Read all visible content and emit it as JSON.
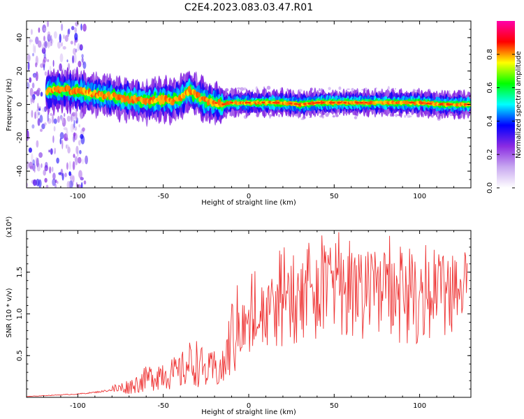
{
  "title": "C2E4.2023.083.03.47.R01",
  "chart_data": [
    {
      "type": "heatmap",
      "xlabel": "Height of straight line (km)",
      "ylabel": "Frequency (Hz)",
      "xlim": [
        -130,
        130
      ],
      "ylim": [
        -50,
        50
      ],
      "xticks": [
        -100,
        -50,
        0,
        50,
        100
      ],
      "yticks": [
        -40,
        -20,
        0,
        20,
        40
      ],
      "colorbar": {
        "label": "Normalized spectral amplitude",
        "range": [
          0,
          1
        ],
        "ticks": [
          "0.0",
          "0.2",
          "0.4",
          "0.6",
          "0.8"
        ],
        "colors": [
          "#ffffff",
          "#c8a8f0",
          "#8a2be2",
          "#0000ff",
          "#00ffff",
          "#00ff00",
          "#ffff00",
          "#ff0000",
          "#ff00aa"
        ]
      },
      "ridge": {
        "x": [
          -118,
          -110,
          -100,
          -90,
          -80,
          -70,
          -60,
          -50,
          -45,
          -40,
          -35,
          -30,
          -25,
          -20,
          -15,
          -10,
          0,
          10,
          20,
          30,
          40,
          50,
          60,
          70,
          80,
          90,
          100,
          110,
          120,
          128
        ],
        "y": [
          8,
          9,
          8,
          6,
          5,
          3,
          2,
          3,
          2,
          4,
          8,
          5,
          2,
          1,
          0,
          1,
          1,
          1,
          1,
          0,
          1,
          1,
          1,
          1,
          1,
          1,
          1,
          0,
          0,
          0
        ]
      }
    },
    {
      "type": "line",
      "xlabel": "Height of straight line (km)",
      "ylabel": "SNR (10 * v/v)",
      "yscale_label": "(x10⁴)",
      "xlim": [
        -130,
        130
      ],
      "ylim": [
        0,
        2.0
      ],
      "xticks": [
        -100,
        -50,
        0,
        50,
        100
      ],
      "yticks": [
        "0.5",
        "1.0",
        "1.5"
      ],
      "line_color": "#ee3333",
      "series": [
        {
          "x": [
            -130,
            -120,
            -110,
            -100,
            -90,
            -80,
            -70,
            -65,
            -60,
            -55,
            -50,
            -45,
            -40,
            -35,
            -30,
            -25,
            -20,
            -15,
            -10,
            -5,
            0,
            5,
            10,
            20,
            30,
            40,
            50,
            60,
            70,
            80,
            90,
            100,
            110,
            120,
            128
          ],
          "values": [
            0.01,
            0.02,
            0.03,
            0.04,
            0.06,
            0.09,
            0.13,
            0.17,
            0.22,
            0.26,
            0.3,
            0.28,
            0.3,
            0.4,
            0.42,
            0.3,
            0.34,
            0.33,
            0.72,
            0.85,
            0.78,
            0.9,
            0.95,
            1.05,
            1.15,
            1.2,
            1.25,
            1.2,
            1.25,
            1.22,
            1.18,
            1.15,
            1.12,
            1.1,
            1.25
          ]
        }
      ]
    }
  ]
}
